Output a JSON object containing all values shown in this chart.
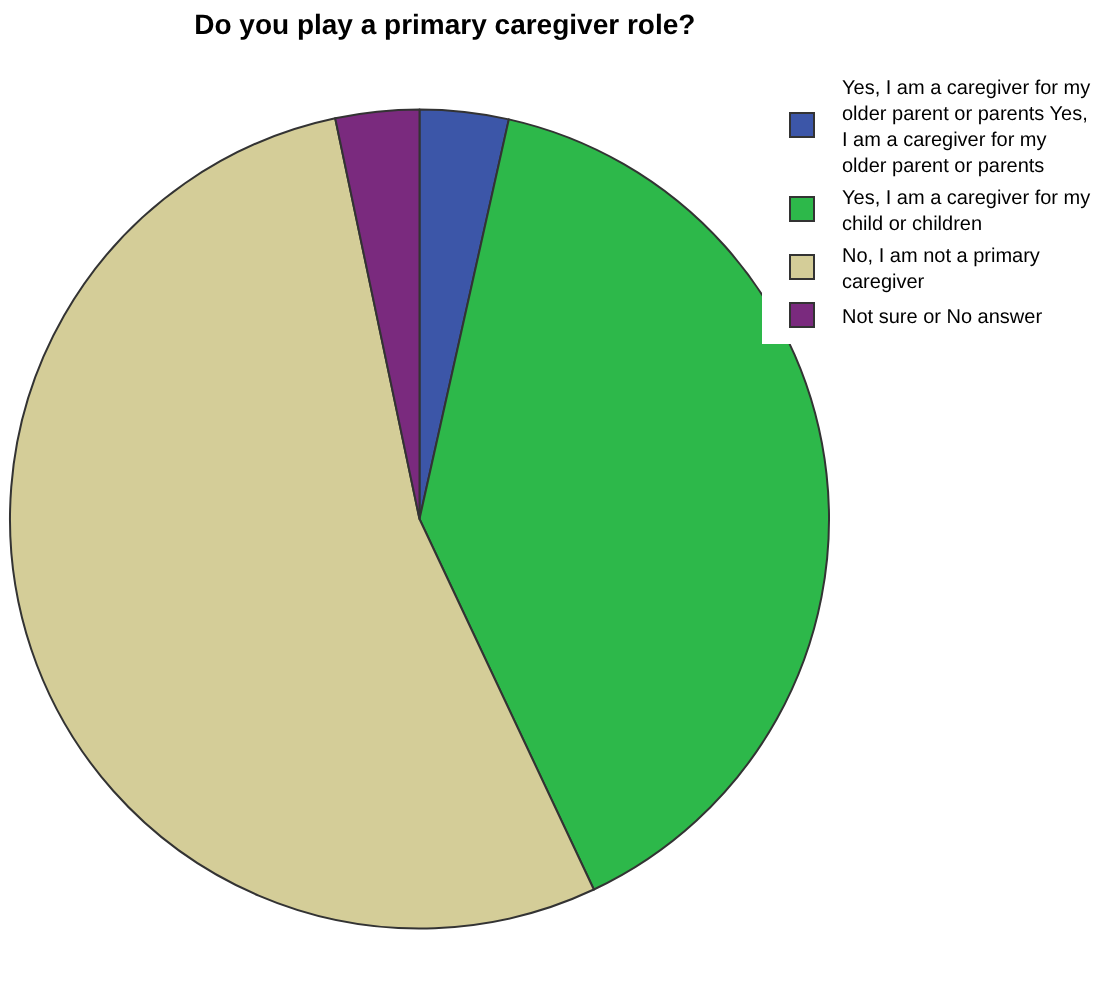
{
  "chart_data": {
    "type": "pie",
    "title": "Do you play a primary caregiver role?",
    "categories": [
      "Yes, I am a caregiver for my older parent or parents Yes, I am a caregiver for my older parent or parents",
      "Yes, I am a caregiver for my child or children",
      "No, I am not a primary caregiver",
      "Not sure or No answer"
    ],
    "values": [
      3.5,
      39.5,
      53.7,
      3.3
    ],
    "colors": [
      "#3c56a8",
      "#2db84a",
      "#d4cd98",
      "#7a2a7e"
    ],
    "legend": "top right"
  }
}
